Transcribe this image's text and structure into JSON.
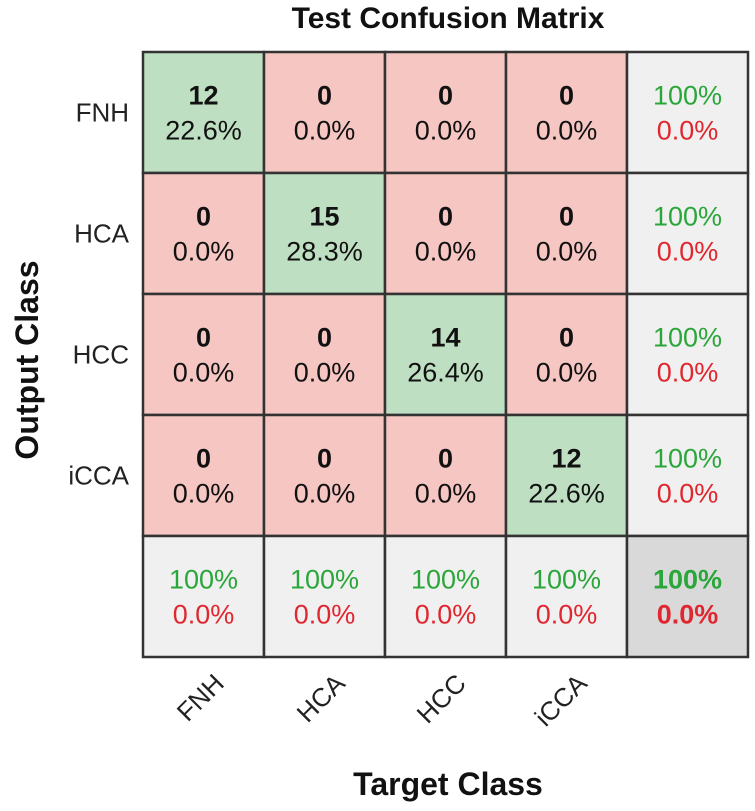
{
  "chart_data": {
    "type": "heatmap",
    "title": "Test Confusion Matrix",
    "xlabel": "Target Class",
    "ylabel": "Output Class",
    "classes": [
      "FNH",
      "HCA",
      "HCC",
      "iCCA"
    ],
    "counts": [
      [
        12,
        0,
        0,
        0
      ],
      [
        0,
        15,
        0,
        0
      ],
      [
        0,
        0,
        14,
        0
      ],
      [
        0,
        0,
        0,
        12
      ]
    ],
    "percentages": [
      [
        "22.6%",
        "0.0%",
        "0.0%",
        "0.0%"
      ],
      [
        "0.0%",
        "28.3%",
        "0.0%",
        "0.0%"
      ],
      [
        "0.0%",
        "0.0%",
        "26.4%",
        "0.0%"
      ],
      [
        "0.0%",
        "0.0%",
        "0.0%",
        "22.6%"
      ]
    ],
    "row_summary": [
      {
        "correct": "100%",
        "incorrect": "0.0%"
      },
      {
        "correct": "100%",
        "incorrect": "0.0%"
      },
      {
        "correct": "100%",
        "incorrect": "0.0%"
      },
      {
        "correct": "100%",
        "incorrect": "0.0%"
      }
    ],
    "col_summary": [
      {
        "correct": "100%",
        "incorrect": "0.0%"
      },
      {
        "correct": "100%",
        "incorrect": "0.0%"
      },
      {
        "correct": "100%",
        "incorrect": "0.0%"
      },
      {
        "correct": "100%",
        "incorrect": "0.0%"
      }
    ],
    "overall": {
      "correct": "100%",
      "incorrect": "0.0%"
    },
    "colors": {
      "diagonal": "#bfdfc2",
      "off_diagonal": "#f6c6c3",
      "summary": "#f0f0f0",
      "overall": "#d9d9d9",
      "good_text": "#2aa63a",
      "bad_text": "#e0262f",
      "grid": "#333333"
    }
  }
}
